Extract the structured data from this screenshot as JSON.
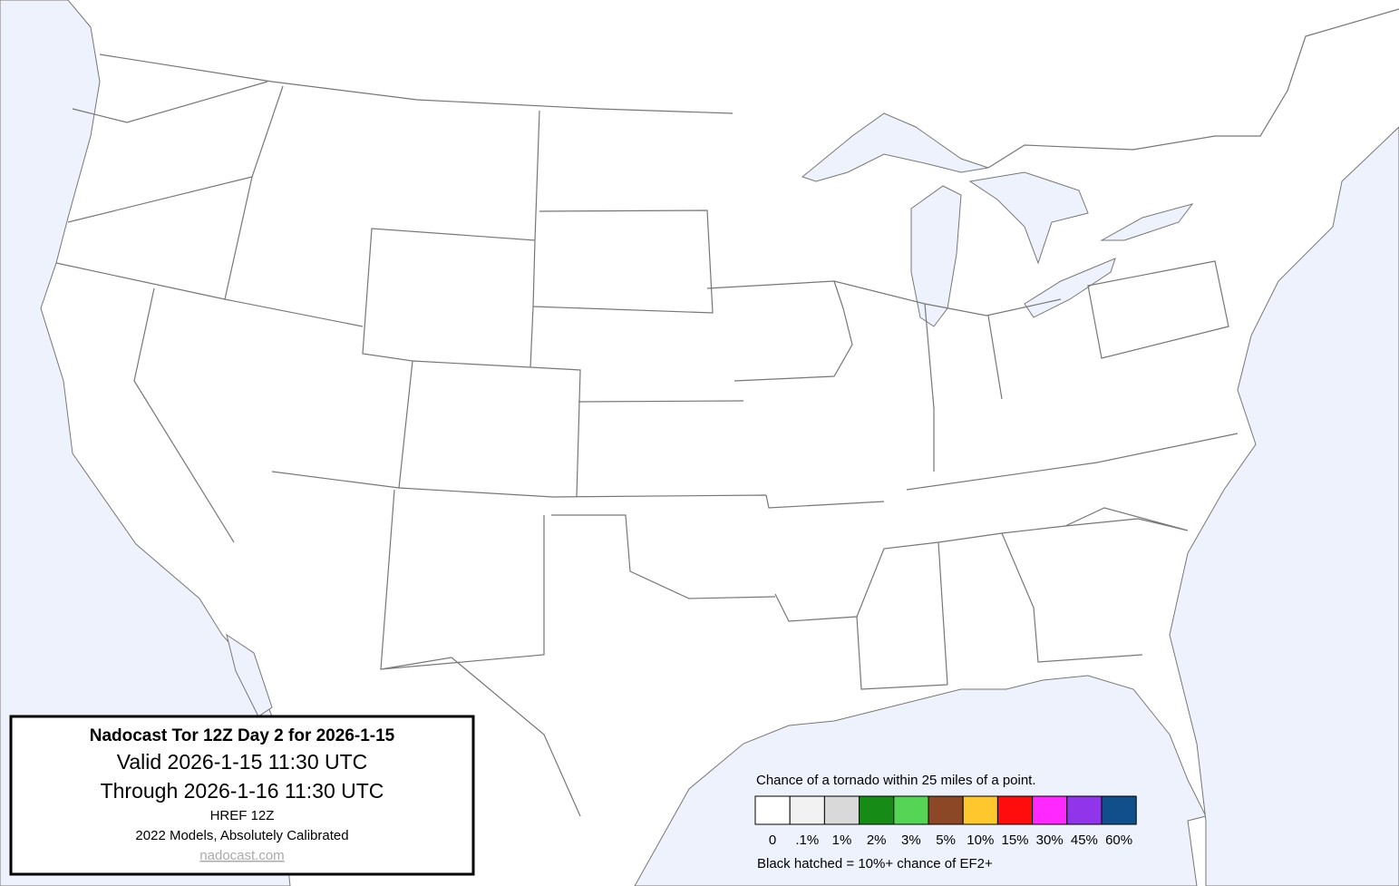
{
  "title_box": {
    "title": "Nadocast Tor 12Z Day 2 for 2026-1-15",
    "valid": "Valid 2026-1-15 11:30 UTC",
    "through": "Through 2026-1-16 11:30 UTC",
    "model": "HREF 12Z",
    "calibration": "2022 Models, Absolutely Calibrated",
    "link": "nadocast.com"
  },
  "legend": {
    "title": "Chance of a tornado within 25 miles of a point.",
    "items": [
      {
        "label": "0",
        "color": "#ffffff"
      },
      {
        "label": ".1%",
        "color": "#f2f2f2"
      },
      {
        "label": "1%",
        "color": "#d9d9d9"
      },
      {
        "label": "2%",
        "color": "#168c16"
      },
      {
        "label": "3%",
        "color": "#55d455"
      },
      {
        "label": "5%",
        "color": "#8b4726"
      },
      {
        "label": "10%",
        "color": "#ffc72e"
      },
      {
        "label": "15%",
        "color": "#ff0d0d"
      },
      {
        "label": "30%",
        "color": "#ff28ff"
      },
      {
        "label": "45%",
        "color": "#9035ea"
      },
      {
        "label": "60%",
        "color": "#104f8a"
      }
    ],
    "note": "Black hatched = 10%+ chance of EF2+"
  }
}
